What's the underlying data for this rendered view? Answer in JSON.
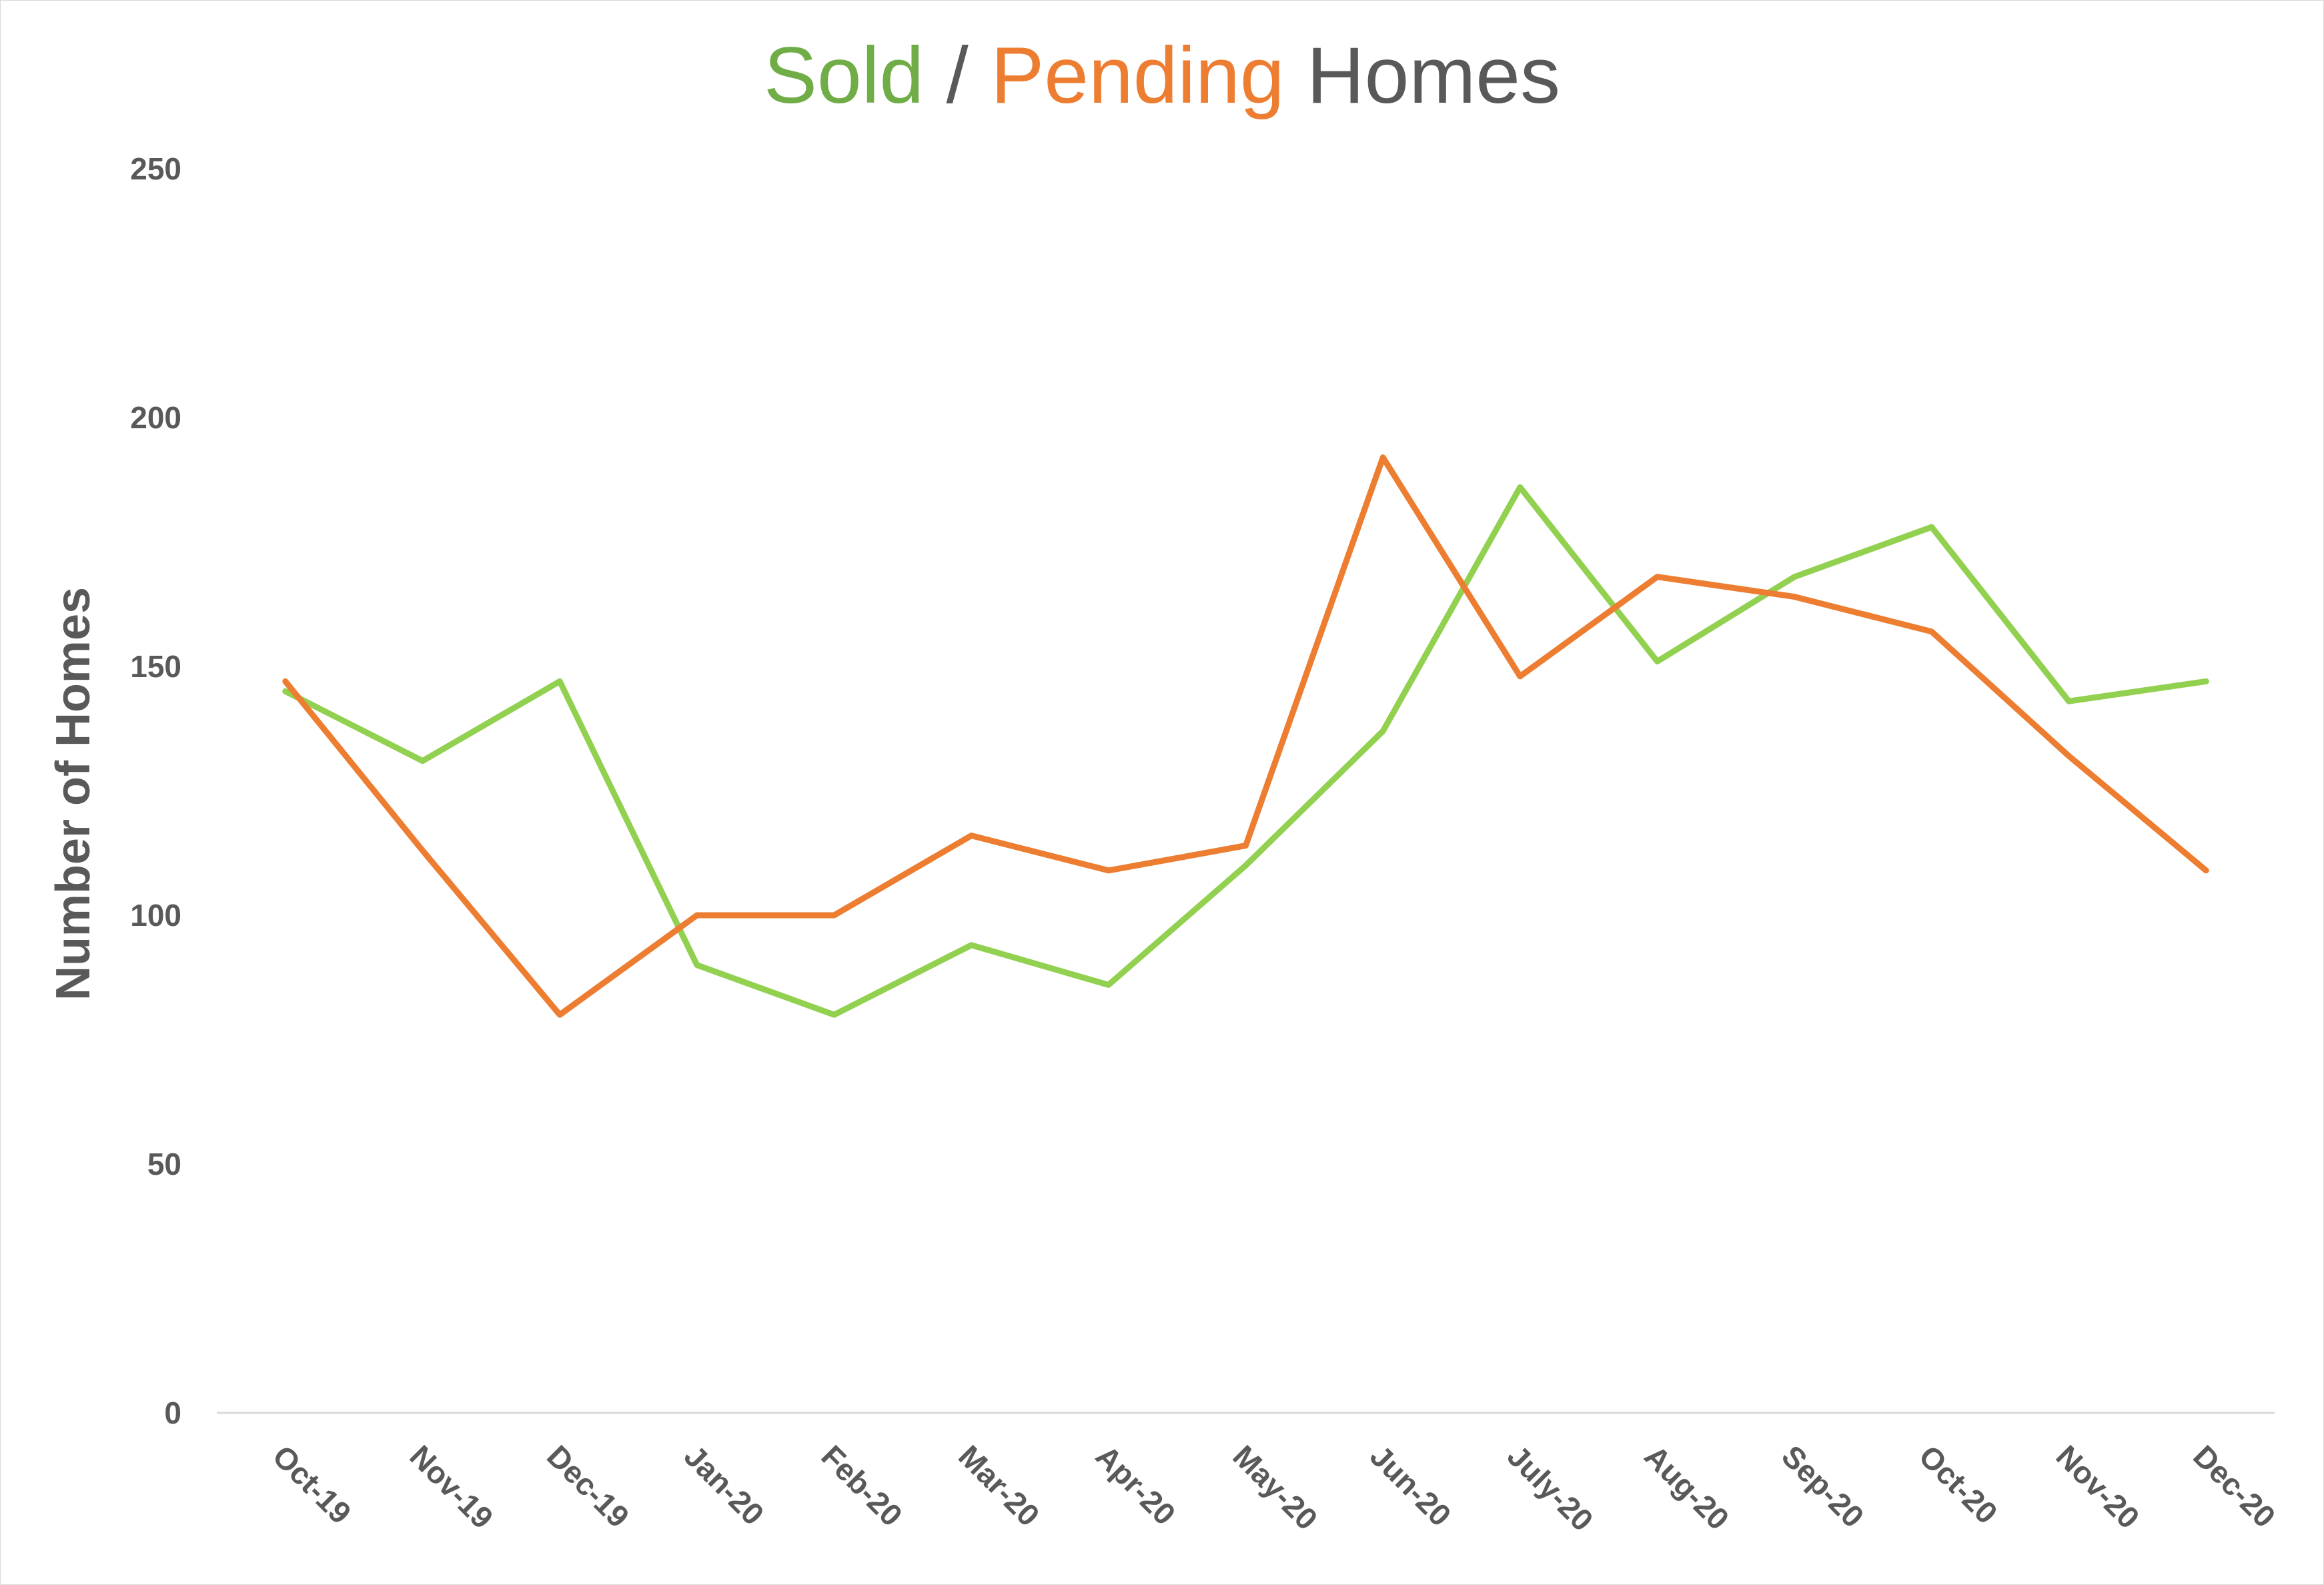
{
  "chart_data": {
    "type": "line",
    "title_parts": [
      {
        "text": "Sold",
        "color": "#70ad47"
      },
      {
        "text": " / ",
        "color": "#595959"
      },
      {
        "text": "Pending",
        "color": "#ed7d31"
      },
      {
        "text": " Homes",
        "color": "#595959"
      }
    ],
    "ylabel": "Number of Homes",
    "xlabel": "",
    "categories": [
      "Oct-19",
      "Nov-19",
      "Dec-19",
      "Jan-20",
      "Feb-20",
      "Mar-20",
      "Apr-20",
      "May-20",
      "Jun-20",
      "July-20",
      "Aug-20",
      "Sep-20",
      "Oct-20",
      "Nov-20",
      "Dec-20"
    ],
    "ylim": [
      0,
      250
    ],
    "yticks": [
      0,
      50,
      100,
      150,
      200,
      250
    ],
    "grid": false,
    "series": [
      {
        "color": "#92d050",
        "values": [
          145,
          131,
          147,
          90,
          80,
          94,
          86,
          110,
          137,
          186,
          151,
          168,
          178,
          143,
          147
        ]
      },
      {
        "color": "#ed7d31",
        "values": [
          147,
          113,
          80,
          100,
          100,
          116,
          109,
          114,
          192,
          148,
          168,
          164,
          157,
          132,
          109
        ]
      }
    ]
  }
}
